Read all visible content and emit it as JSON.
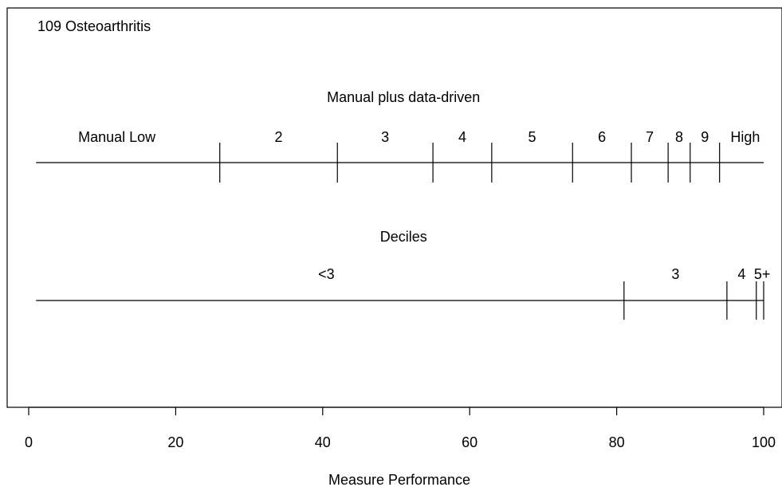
{
  "chart_data": {
    "type": "scale",
    "title": "109 Osteoarthritis",
    "xlabel": "Measure Performance",
    "xlim": [
      0,
      100
    ],
    "xticks": [
      "0",
      "20",
      "40",
      "60",
      "80",
      "100"
    ],
    "xtick_values": [
      0,
      20,
      40,
      60,
      80,
      100
    ],
    "grid": false,
    "scales": [
      {
        "name": "Manual plus data-driven",
        "range": [
          1,
          100
        ],
        "cutpoints": [
          26,
          42,
          55,
          63,
          74,
          82,
          87,
          90,
          94
        ],
        "labels": [
          {
            "text": "Manual Low",
            "x": 12
          },
          {
            "text": "2",
            "x": 34
          },
          {
            "text": "3",
            "x": 48.5
          },
          {
            "text": "4",
            "x": 59
          },
          {
            "text": "5",
            "x": 68.5
          },
          {
            "text": "6",
            "x": 78
          },
          {
            "text": "7",
            "x": 84.5
          },
          {
            "text": "8",
            "x": 88.5
          },
          {
            "text": "9",
            "x": 92
          },
          {
            "text": "High",
            "x": 97.5
          }
        ]
      },
      {
        "name": "Deciles",
        "range": [
          1,
          100
        ],
        "cutpoints": [
          81,
          95,
          99,
          100
        ],
        "labels": [
          {
            "text": "<3",
            "x": 40.5
          },
          {
            "text": "3",
            "x": 88
          },
          {
            "text": "4",
            "x": 97
          },
          {
            "text": "5+",
            "x": 99.8
          }
        ]
      }
    ]
  }
}
